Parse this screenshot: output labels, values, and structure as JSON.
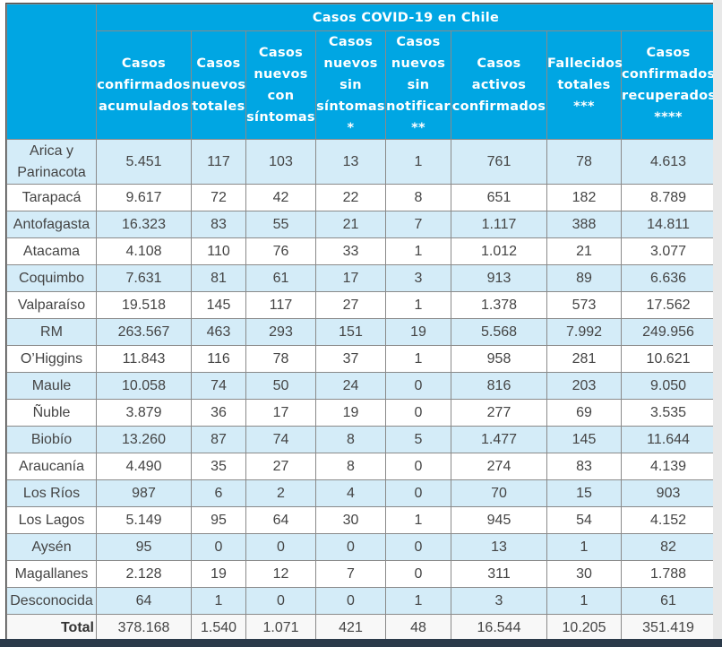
{
  "title": "Casos COVID-19 en Chile",
  "columns": [
    "Casos confirmados acumulados",
    "Casos nuevos totales",
    "Casos nuevos con síntomas",
    "Casos nuevos sin síntomas *",
    "Casos nuevos sin notificar **",
    "Casos activos confirmados",
    "Fallecidos totales ***",
    "Casos confirmados recuperados ****"
  ],
  "rows": [
    {
      "region": "Arica y Parinacota",
      "values": [
        "5.451",
        "117",
        "103",
        "13",
        "1",
        "761",
        "78",
        "4.613"
      ]
    },
    {
      "region": "Tarapacá",
      "values": [
        "9.617",
        "72",
        "42",
        "22",
        "8",
        "651",
        "182",
        "8.789"
      ]
    },
    {
      "region": "Antofagasta",
      "values": [
        "16.323",
        "83",
        "55",
        "21",
        "7",
        "1.117",
        "388",
        "14.811"
      ]
    },
    {
      "region": "Atacama",
      "values": [
        "4.108",
        "110",
        "76",
        "33",
        "1",
        "1.012",
        "21",
        "3.077"
      ]
    },
    {
      "region": "Coquimbo",
      "values": [
        "7.631",
        "81",
        "61",
        "17",
        "3",
        "913",
        "89",
        "6.636"
      ]
    },
    {
      "region": "Valparaíso",
      "values": [
        "19.518",
        "145",
        "117",
        "27",
        "1",
        "1.378",
        "573",
        "17.562"
      ]
    },
    {
      "region": "RM",
      "values": [
        "263.567",
        "463",
        "293",
        "151",
        "19",
        "5.568",
        "7.992",
        "249.956"
      ]
    },
    {
      "region": "O’Higgins",
      "values": [
        "11.843",
        "116",
        "78",
        "37",
        "1",
        "958",
        "281",
        "10.621"
      ]
    },
    {
      "region": "Maule",
      "values": [
        "10.058",
        "74",
        "50",
        "24",
        "0",
        "816",
        "203",
        "9.050"
      ]
    },
    {
      "region": "Ñuble",
      "values": [
        "3.879",
        "36",
        "17",
        "19",
        "0",
        "277",
        "69",
        "3.535"
      ]
    },
    {
      "region": "Biobío",
      "values": [
        "13.260",
        "87",
        "74",
        "8",
        "5",
        "1.477",
        "145",
        "11.644"
      ]
    },
    {
      "region": "Araucanía",
      "values": [
        "4.490",
        "35",
        "27",
        "8",
        "0",
        "274",
        "83",
        "4.139"
      ]
    },
    {
      "region": "Los Ríos",
      "values": [
        "987",
        "6",
        "2",
        "4",
        "0",
        "70",
        "15",
        "903"
      ]
    },
    {
      "region": "Los Lagos",
      "values": [
        "5.149",
        "95",
        "64",
        "30",
        "1",
        "945",
        "54",
        "4.152"
      ]
    },
    {
      "region": "Aysén",
      "values": [
        "95",
        "0",
        "0",
        "0",
        "0",
        "13",
        "1",
        "82"
      ]
    },
    {
      "region": "Magallanes",
      "values": [
        "2.128",
        "19",
        "12",
        "7",
        "0",
        "311",
        "30",
        "1.788"
      ]
    },
    {
      "region": "Desconocida",
      "values": [
        "64",
        "1",
        "0",
        "0",
        "1",
        "3",
        "1",
        "61"
      ]
    }
  ],
  "total": {
    "label": "Total",
    "values": [
      "378.168",
      "1.540",
      "1.071",
      "421",
      "48",
      "16.544",
      "10.205",
      "351.419"
    ]
  }
}
